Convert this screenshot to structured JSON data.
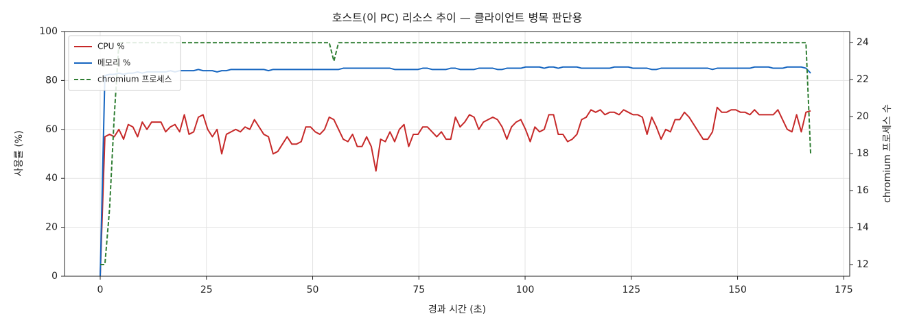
{
  "chart_data": {
    "type": "line",
    "title": "호스트(이 PC) 리소스 추이 — 클라이언트 병목 판단용",
    "xlabel": "경과 시간 (초)",
    "ylabel": "사용률 (%)",
    "y2label": "chromium 프로세스 수",
    "xlim": [
      -8.4,
      176.4
    ],
    "xticks": [
      0,
      25,
      50,
      75,
      100,
      125,
      150,
      175
    ],
    "ylim": [
      0,
      100
    ],
    "yticks": [
      0,
      20,
      40,
      60,
      80,
      100
    ],
    "y2lim": [
      11.37,
      24.6
    ],
    "y2ticks": [
      12,
      14,
      16,
      18,
      20,
      22,
      24
    ],
    "grid": true,
    "legend": "upper left",
    "x": [
      0,
      1.1,
      2.2,
      3.3,
      4.4,
      5.5,
      6.6,
      7.7,
      8.8,
      9.9,
      11,
      12.1,
      13.2,
      14.3,
      15.4,
      16.5,
      17.6,
      18.7,
      19.8,
      20.9,
      22,
      23.1,
      24.2,
      25.3,
      26.4,
      27.5,
      28.6,
      29.7,
      30.8,
      31.9,
      33,
      34.1,
      35.2,
      36.3,
      37.4,
      38.5,
      39.6,
      40.7,
      41.8,
      42.9,
      44,
      45.1,
      46.2,
      47.3,
      48.4,
      49.5,
      50.6,
      51.7,
      52.8,
      53.9,
      55,
      56.1,
      57.2,
      58.3,
      59.4,
      60.5,
      61.6,
      62.7,
      63.8,
      64.9,
      66,
      67.1,
      68.2,
      69.3,
      70.4,
      71.5,
      72.6,
      73.7,
      74.8,
      75.9,
      77,
      78.1,
      79.2,
      80.3,
      81.4,
      82.5,
      83.6,
      84.7,
      85.8,
      86.9,
      88,
      89.1,
      90.2,
      91.3,
      92.4,
      93.5,
      94.6,
      95.7,
      96.8,
      97.9,
      99,
      100.1,
      101.2,
      102.3,
      103.4,
      104.5,
      105.6,
      106.7,
      107.8,
      108.9,
      110,
      111.1,
      112.2,
      113.3,
      114.4,
      115.5,
      116.6,
      117.7,
      118.8,
      119.9,
      121,
      122.1,
      123.2,
      124.3,
      125.4,
      126.5,
      127.6,
      128.7,
      129.8,
      130.9,
      132,
      133.1,
      134.2,
      135.3,
      136.4,
      137.5,
      138.6,
      139.7,
      140.8,
      141.9,
      143,
      144.1,
      145.2,
      146.3,
      147.4,
      148.5,
      149.6,
      150.7,
      151.8,
      152.9,
      154,
      155.1,
      156.2,
      157.3,
      158.4,
      159.5,
      160.6,
      161.7,
      162.8,
      163.9,
      165,
      166.1,
      167.2
    ],
    "series": [
      {
        "name": "CPU %",
        "color": "#c62828",
        "linestyle": "solid",
        "values": [
          0,
          57,
          58,
          57,
          60,
          56,
          62,
          61,
          57,
          63,
          60,
          63,
          63,
          63,
          59,
          61,
          62,
          59,
          66,
          58,
          59,
          65,
          66,
          60,
          57,
          60,
          50,
          58,
          59,
          60,
          59,
          61,
          60,
          64,
          61,
          58,
          57,
          50,
          51,
          54,
          57,
          54,
          54,
          55,
          61,
          61,
          59,
          58,
          60,
          65,
          64,
          60,
          56,
          55,
          58,
          53,
          53,
          57,
          53,
          43,
          56,
          55,
          59,
          55,
          60,
          62,
          53,
          58,
          58,
          61,
          61,
          59,
          57,
          59,
          56,
          56,
          65,
          61,
          63,
          66,
          65,
          60,
          63,
          64,
          65,
          64,
          61,
          56,
          61,
          63,
          64,
          60,
          55,
          61,
          59,
          60,
          66,
          66,
          58,
          58,
          55,
          56,
          58,
          64,
          65,
          68,
          67,
          68,
          66,
          67,
          67,
          66,
          68,
          67,
          66,
          66,
          65,
          58,
          65,
          61,
          56,
          60,
          59,
          64,
          64,
          67,
          65,
          62,
          59,
          56,
          56,
          59,
          69,
          67,
          67,
          68,
          68,
          67,
          67,
          66,
          68,
          66,
          66,
          66,
          66,
          68,
          64,
          60,
          59,
          66,
          59,
          67,
          67.6
        ]
      },
      {
        "name": "메모리 %",
        "color": "#1565c0",
        "linestyle": "solid",
        "values": [
          0,
          82,
          82.5,
          82.5,
          83,
          82.5,
          83,
          83,
          83.5,
          83,
          83.5,
          83.5,
          83.5,
          83.5,
          83.5,
          84,
          83.5,
          84,
          84,
          84,
          84,
          84.5,
          84,
          84,
          84,
          83.5,
          84,
          84,
          84.5,
          84.5,
          84.5,
          84.5,
          84.5,
          84.5,
          84.5,
          84.5,
          84,
          84.5,
          84.5,
          84.5,
          84.5,
          84.5,
          84.5,
          84.5,
          84.5,
          84.5,
          84.5,
          84.5,
          84.5,
          84.5,
          84.5,
          84.5,
          85,
          85,
          85,
          85,
          85,
          85,
          85,
          85,
          85,
          85,
          85,
          84.5,
          84.5,
          84.5,
          84.5,
          84.5,
          84.5,
          85,
          85,
          84.5,
          84.5,
          84.5,
          84.5,
          85,
          85,
          84.5,
          84.5,
          84.5,
          84.5,
          85,
          85,
          85,
          85,
          84.5,
          84.5,
          85,
          85,
          85,
          85,
          85.5,
          85.5,
          85.5,
          85.5,
          85,
          85.5,
          85.5,
          85,
          85.5,
          85.5,
          85.5,
          85.5,
          85,
          85,
          85,
          85,
          85,
          85,
          85,
          85.5,
          85.5,
          85.5,
          85.5,
          85,
          85,
          85,
          85,
          84.5,
          84.5,
          85,
          85,
          85,
          85,
          85,
          85,
          85,
          85,
          85,
          85,
          85,
          84.5,
          85,
          85,
          85,
          85,
          85,
          85,
          85,
          85,
          85.5,
          85.5,
          85.5,
          85.5,
          85,
          85,
          85,
          85.5,
          85.5,
          85.5,
          85.5,
          85,
          83
        ]
      },
      {
        "name": "chromium 프로세스",
        "color": "#2e7d32",
        "linestyle": "dashed",
        "axis": "y2",
        "values": [
          12,
          12,
          15,
          20,
          24,
          24,
          24,
          24,
          24,
          24,
          24,
          24,
          24,
          24,
          24,
          24,
          24,
          24,
          24,
          24,
          24,
          24,
          24,
          24,
          24,
          24,
          24,
          24,
          24,
          24,
          24,
          24,
          24,
          24,
          24,
          24,
          24,
          24,
          24,
          24,
          24,
          24,
          24,
          24,
          24,
          24,
          24,
          24,
          24,
          24,
          23,
          24,
          24,
          24,
          24,
          24,
          24,
          24,
          24,
          24,
          24,
          24,
          24,
          24,
          24,
          24,
          24,
          24,
          24,
          24,
          24,
          24,
          24,
          24,
          24,
          24,
          24,
          24,
          24,
          24,
          24,
          24,
          24,
          24,
          24,
          24,
          24,
          24,
          24,
          24,
          24,
          24,
          24,
          24,
          24,
          24,
          24,
          24,
          24,
          24,
          24,
          24,
          24,
          24,
          24,
          24,
          24,
          24,
          24,
          24,
          24,
          24,
          24,
          24,
          24,
          24,
          24,
          24,
          24,
          24,
          24,
          24,
          24,
          24,
          24,
          24,
          24,
          24,
          24,
          24,
          24,
          24,
          24,
          24,
          24,
          24,
          24,
          24,
          24,
          24,
          24,
          24,
          24,
          24,
          24,
          24,
          24,
          24,
          24,
          24,
          24,
          24,
          18
        ]
      }
    ]
  }
}
